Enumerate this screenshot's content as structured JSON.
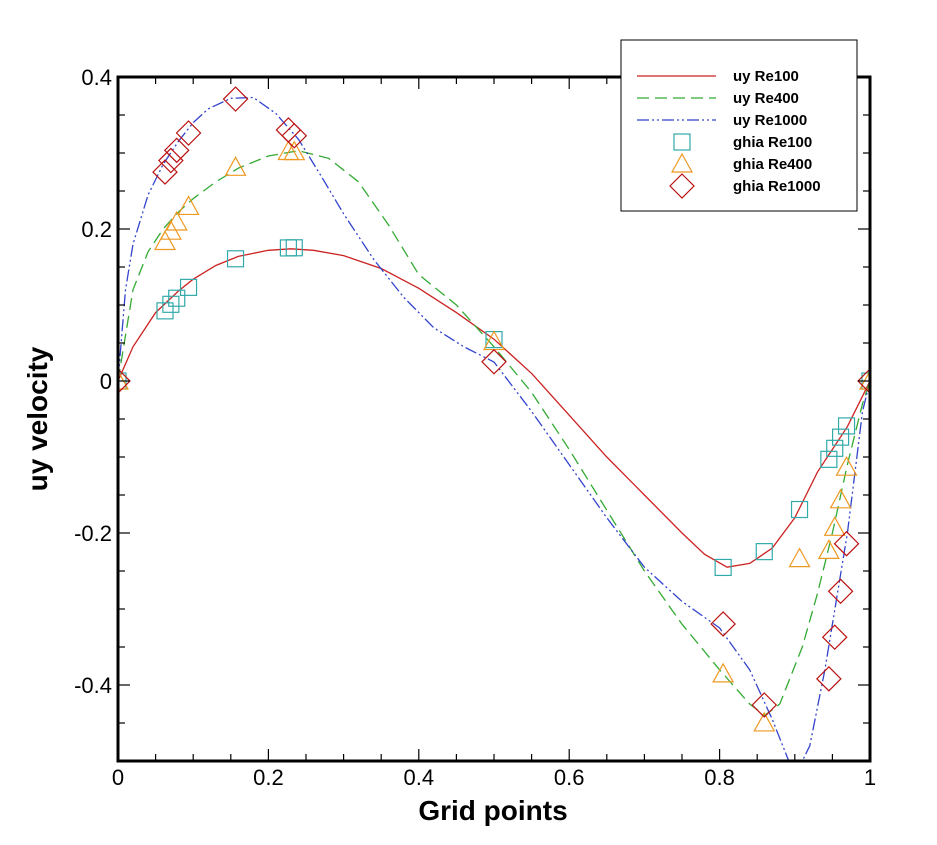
{
  "chart_data": {
    "type": "line",
    "title": "",
    "xlabel": "Grid points",
    "ylabel": "uy velocity",
    "xlim": [
      0,
      1
    ],
    "ylim": [
      -0.5,
      0.4
    ],
    "grid": false,
    "legend_position": "top-right",
    "x_ticks": [
      {
        "value": 0,
        "label": "0"
      },
      {
        "value": 0.2,
        "label": "0.2"
      },
      {
        "value": 0.4,
        "label": "0.4"
      },
      {
        "value": 0.6,
        "label": "0.6"
      },
      {
        "value": 0.8,
        "label": "0.8"
      },
      {
        "value": 1,
        "label": "1"
      }
    ],
    "y_ticks": [
      {
        "value": -0.4,
        "label": "-0.4"
      },
      {
        "value": -0.2,
        "label": "-0.2"
      },
      {
        "value": 0,
        "label": "0"
      },
      {
        "value": 0.2,
        "label": "0.2"
      },
      {
        "value": 0.4,
        "label": "0.4"
      }
    ],
    "lines": [
      {
        "name": "uy Re100",
        "color": "#cc2222",
        "dash": "solid",
        "x": [
          0,
          0.02,
          0.05,
          0.08,
          0.1,
          0.13,
          0.16,
          0.2,
          0.23,
          0.26,
          0.3,
          0.35,
          0.4,
          0.45,
          0.5,
          0.55,
          0.6,
          0.65,
          0.7,
          0.75,
          0.78,
          0.81,
          0.84,
          0.87,
          0.9,
          0.93,
          0.95,
          0.97,
          0.99,
          1
        ],
        "y": [
          0,
          0.045,
          0.09,
          0.118,
          0.134,
          0.152,
          0.164,
          0.172,
          0.174,
          0.172,
          0.165,
          0.148,
          0.122,
          0.09,
          0.055,
          0.01,
          -0.045,
          -0.1,
          -0.15,
          -0.2,
          -0.228,
          -0.245,
          -0.24,
          -0.22,
          -0.18,
          -0.12,
          -0.09,
          -0.06,
          -0.02,
          0
        ]
      },
      {
        "name": "uy Re400",
        "color": "#33aa33",
        "dash": "dashed",
        "x": [
          0,
          0.02,
          0.04,
          0.06,
          0.08,
          0.1,
          0.13,
          0.16,
          0.2,
          0.24,
          0.28,
          0.32,
          0.36,
          0.4,
          0.45,
          0.5,
          0.55,
          0.6,
          0.65,
          0.7,
          0.75,
          0.8,
          0.84,
          0.86,
          0.88,
          0.91,
          0.93,
          0.95,
          0.97,
          0.99,
          1
        ],
        "y": [
          0,
          0.12,
          0.17,
          0.2,
          0.222,
          0.24,
          0.262,
          0.28,
          0.296,
          0.303,
          0.293,
          0.262,
          0.205,
          0.14,
          0.1,
          0.045,
          -0.015,
          -0.09,
          -0.17,
          -0.25,
          -0.32,
          -0.38,
          -0.425,
          -0.44,
          -0.425,
          -0.35,
          -0.28,
          -0.2,
          -0.11,
          -0.03,
          0
        ]
      },
      {
        "name": "uy Re1000",
        "color": "#3344cc",
        "dash": "dashdotdot",
        "x": [
          0,
          0.01,
          0.02,
          0.04,
          0.06,
          0.08,
          0.1,
          0.12,
          0.15,
          0.18,
          0.21,
          0.24,
          0.27,
          0.3,
          0.34,
          0.38,
          0.42,
          0.46,
          0.5,
          0.55,
          0.6,
          0.65,
          0.7,
          0.75,
          0.8,
          0.84,
          0.87,
          0.9,
          0.92,
          0.94,
          0.96,
          0.97,
          0.98,
          0.99,
          1
        ],
        "y": [
          0,
          0.12,
          0.18,
          0.245,
          0.285,
          0.315,
          0.34,
          0.358,
          0.372,
          0.373,
          0.352,
          0.318,
          0.27,
          0.22,
          0.16,
          0.11,
          0.07,
          0.045,
          0.025,
          -0.04,
          -0.11,
          -0.18,
          -0.245,
          -0.29,
          -0.325,
          -0.38,
          -0.445,
          -0.52,
          -0.48,
          -0.38,
          -0.26,
          -0.2,
          -0.12,
          -0.04,
          0
        ]
      }
    ],
    "markers": [
      {
        "name": "ghia Re100",
        "color": "#33aaaa",
        "symbol": "square",
        "x": [
          0,
          0.0625,
          0.0703,
          0.0781,
          0.0938,
          0.1563,
          0.2266,
          0.2344,
          0.5,
          0.8047,
          0.8594,
          0.9063,
          0.9453,
          0.9531,
          0.9609,
          0.9688,
          1
        ],
        "y": [
          0,
          0.0923,
          0.1009,
          0.1089,
          0.1232,
          0.1608,
          0.1751,
          0.1753,
          0.0545,
          -0.2453,
          -0.2245,
          -0.1691,
          -0.1031,
          -0.0886,
          -0.0739,
          -0.0591,
          0
        ]
      },
      {
        "name": "ghia Re400",
        "color": "#ee9922",
        "symbol": "triangle",
        "x": [
          0,
          0.0625,
          0.0703,
          0.0781,
          0.0938,
          0.1563,
          0.2266,
          0.2344,
          0.5,
          0.8047,
          0.8594,
          0.9063,
          0.9453,
          0.9531,
          0.9609,
          0.9688,
          1
        ],
        "y": [
          0,
          0.1836,
          0.1971,
          0.2092,
          0.2297,
          0.2812,
          0.302,
          0.3017,
          0.0519,
          -0.3854,
          -0.4499,
          -0.2337,
          -0.2229,
          -0.1925,
          -0.1563,
          -0.1134,
          0
        ]
      },
      {
        "name": "ghia Re1000",
        "color": "#bb1111",
        "symbol": "diamond",
        "x": [
          0,
          0.0625,
          0.0703,
          0.0781,
          0.0938,
          0.1563,
          0.2266,
          0.2344,
          0.5,
          0.8047,
          0.8594,
          0.9453,
          0.9531,
          0.9609,
          0.9688,
          1
        ],
        "y": [
          0,
          0.2749,
          0.2901,
          0.3035,
          0.3263,
          0.371,
          0.3303,
          0.3227,
          0.0253,
          -0.3197,
          -0.4263,
          -0.3919,
          -0.3371,
          -0.2767,
          -0.2141,
          0
        ]
      }
    ]
  }
}
